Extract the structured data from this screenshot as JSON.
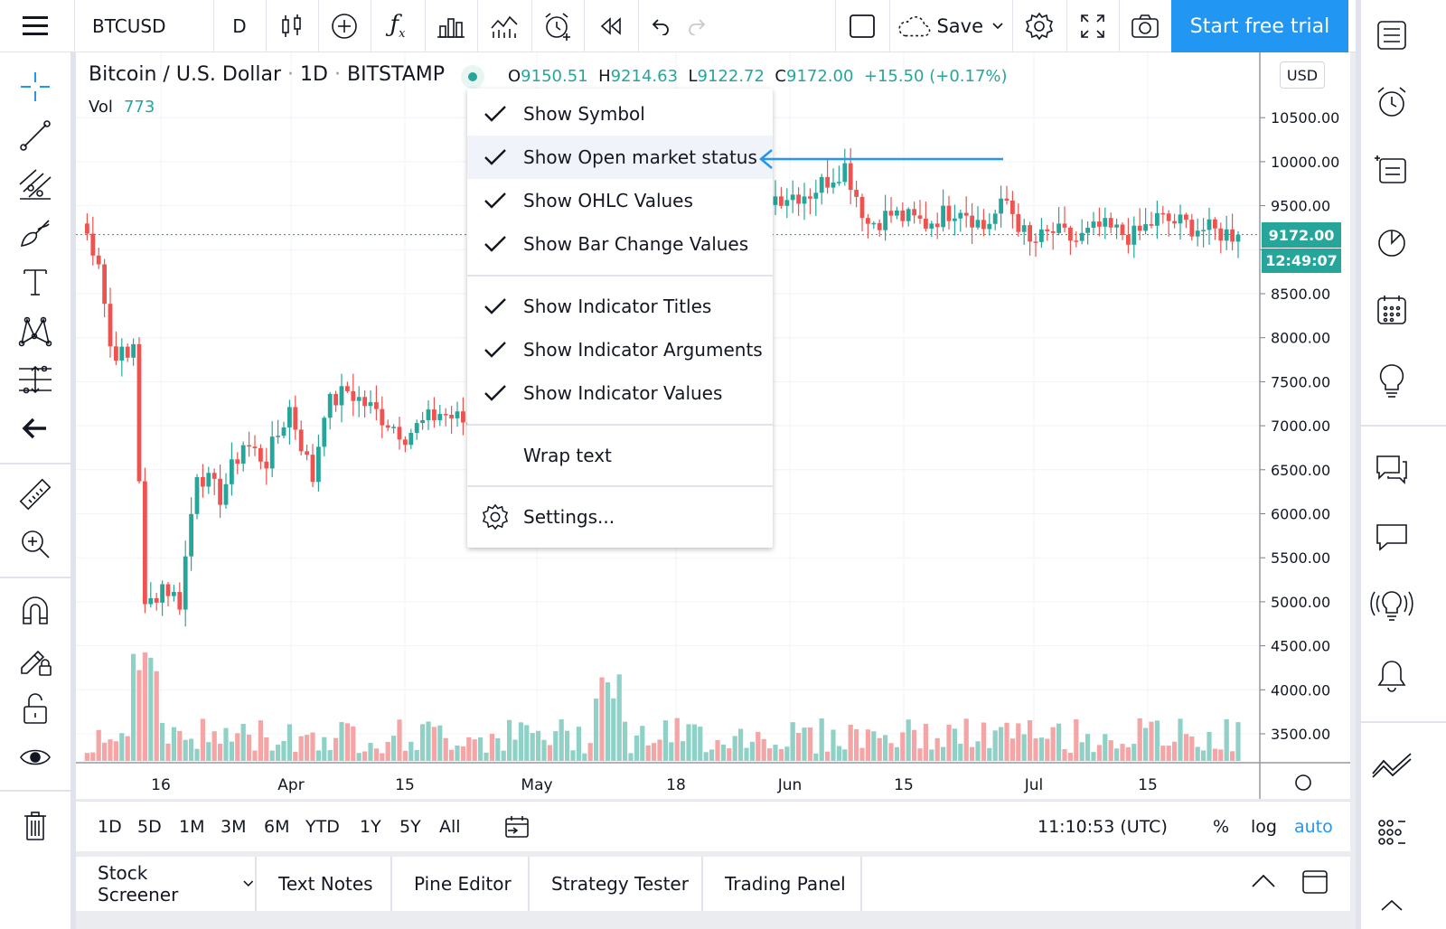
{
  "top_toolbar": {
    "symbol": "BTCUSD",
    "interval": "D",
    "save_label": "Save",
    "start_trial_label": "Start free trial"
  },
  "legend": {
    "symbol_name": "Bitcoin / U.S. Dollar",
    "interval": "1D",
    "exchange": "BITSTAMP",
    "open_key": "O",
    "open": "9150.51",
    "high_key": "H",
    "high": "9214.63",
    "low_key": "L",
    "low": "9122.72",
    "close_key": "C",
    "close": "9172.00",
    "change": "+15.50 (+0.17%)",
    "vol_label": "Vol",
    "vol_value": "773",
    "currency": "USD"
  },
  "price_tags": {
    "last_price": "9172.00",
    "countdown": "12:49:07"
  },
  "context_menu": {
    "items": [
      {
        "label": "Show Symbol",
        "checked": true
      },
      {
        "label": "Show Open market status",
        "checked": true
      },
      {
        "label": "Show OHLC Values",
        "checked": true
      },
      {
        "label": "Show Bar Change Values",
        "checked": true
      },
      {
        "label": "Show Indicator Titles",
        "checked": true
      },
      {
        "label": "Show Indicator Arguments",
        "checked": true
      },
      {
        "label": "Show Indicator Values",
        "checked": true
      },
      {
        "label": "Wrap text",
        "checked": false
      },
      {
        "label": "Settings...",
        "checked": false
      }
    ]
  },
  "range_bar": {
    "ranges": [
      "1D",
      "5D",
      "1M",
      "3M",
      "6M",
      "YTD",
      "1Y",
      "5Y",
      "All"
    ],
    "clock": "11:10:53 (UTC)",
    "percent_label": "%",
    "log_label": "log",
    "auto_label": "auto"
  },
  "panel_tabs": [
    "Stock Screener",
    "Text Notes",
    "Pine Editor",
    "Strategy Tester",
    "Trading Panel"
  ],
  "colors": {
    "up": "#26a69a",
    "down": "#ef5350",
    "up_volume": "#8fd1c6",
    "down_volume": "#f5a5a5",
    "accent": "#2196f3"
  },
  "chart_data": {
    "type": "candlestick",
    "title": "Bitcoin / U.S. Dollar · 1D · BITSTAMP",
    "y_ticks": [
      "10500.00",
      "10000.00",
      "9500.00",
      "9000.00",
      "8500.00",
      "8000.00",
      "7500.00",
      "7000.00",
      "6500.00",
      "6000.00",
      "5500.00",
      "5000.00",
      "4500.00",
      "4000.00",
      "3500.00"
    ],
    "x_ticks": [
      "16",
      "Apr",
      "15",
      "May",
      "18",
      "Jun",
      "15",
      "Jul",
      "15"
    ],
    "ylim": [
      3400,
      10900
    ],
    "last_price": 9172.0
  }
}
